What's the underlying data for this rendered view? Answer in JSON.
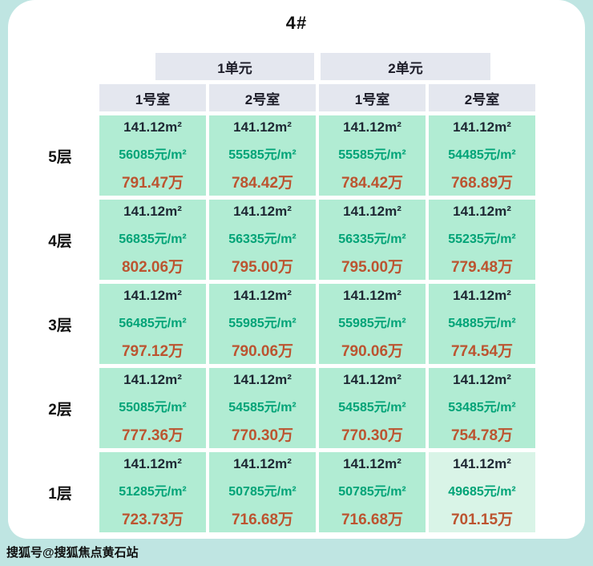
{
  "page": {
    "title": "4#",
    "watermark": "搜狐号@搜狐焦点黄石站"
  },
  "colors": {
    "page_background": "#bfe5e2",
    "card_background": "#ffffff",
    "header_background": "#e4e7ef",
    "cell_background": "#b1ecd3",
    "cell_background_highlight": "#d9f4e7",
    "area_text": "#1e2733",
    "unit_price_text": "#00a377",
    "total_price_text": "#bc5430"
  },
  "table": {
    "unit_headers": [
      "1单元",
      "2单元"
    ],
    "room_headers": [
      "1号室",
      "2号室",
      "1号室",
      "2号室"
    ],
    "rows": [
      {
        "floor": "5层",
        "cells": [
          {
            "area": "141.12m²",
            "unit_price": "56085元/m²",
            "total": "791.47万"
          },
          {
            "area": "141.12m²",
            "unit_price": "55585元/m²",
            "total": "784.42万"
          },
          {
            "area": "141.12m²",
            "unit_price": "55585元/m²",
            "total": "784.42万"
          },
          {
            "area": "141.12m²",
            "unit_price": "54485元/m²",
            "total": "768.89万"
          }
        ]
      },
      {
        "floor": "4层",
        "cells": [
          {
            "area": "141.12m²",
            "unit_price": "56835元/m²",
            "total": "802.06万"
          },
          {
            "area": "141.12m²",
            "unit_price": "56335元/m²",
            "total": "795.00万"
          },
          {
            "area": "141.12m²",
            "unit_price": "56335元/m²",
            "total": "795.00万"
          },
          {
            "area": "141.12m²",
            "unit_price": "55235元/m²",
            "total": "779.48万"
          }
        ]
      },
      {
        "floor": "3层",
        "cells": [
          {
            "area": "141.12m²",
            "unit_price": "56485元/m²",
            "total": "797.12万"
          },
          {
            "area": "141.12m²",
            "unit_price": "55985元/m²",
            "total": "790.06万"
          },
          {
            "area": "141.12m²",
            "unit_price": "55985元/m²",
            "total": "790.06万"
          },
          {
            "area": "141.12m²",
            "unit_price": "54885元/m²",
            "total": "774.54万"
          }
        ]
      },
      {
        "floor": "2层",
        "cells": [
          {
            "area": "141.12m²",
            "unit_price": "55085元/m²",
            "total": "777.36万"
          },
          {
            "area": "141.12m²",
            "unit_price": "54585元/m²",
            "total": "770.30万"
          },
          {
            "area": "141.12m²",
            "unit_price": "54585元/m²",
            "total": "770.30万"
          },
          {
            "area": "141.12m²",
            "unit_price": "53485元/m²",
            "total": "754.78万"
          }
        ]
      },
      {
        "floor": "1层",
        "cells": [
          {
            "area": "141.12m²",
            "unit_price": "51285元/m²",
            "total": "723.73万"
          },
          {
            "area": "141.12m²",
            "unit_price": "50785元/m²",
            "total": "716.68万"
          },
          {
            "area": "141.12m²",
            "unit_price": "50785元/m²",
            "total": "716.68万"
          },
          {
            "area": "141.12m²",
            "unit_price": "49685元/m²",
            "total": "701.15万"
          }
        ]
      }
    ]
  },
  "chart_data": {
    "type": "table",
    "title": "4#",
    "column_groups": [
      "1单元",
      "2单元"
    ],
    "columns": [
      "1号室",
      "2号室",
      "1号室",
      "2号室"
    ],
    "row_labels": [
      "5层",
      "4层",
      "3层",
      "2层",
      "1层"
    ],
    "area_m2": 141.12,
    "unit_prices_yuan_per_m2": [
      [
        56085,
        55585,
        55585,
        54485
      ],
      [
        56835,
        56335,
        56335,
        55235
      ],
      [
        56485,
        55985,
        55985,
        54885
      ],
      [
        55085,
        54585,
        54585,
        53485
      ],
      [
        51285,
        50785,
        50785,
        49685
      ]
    ],
    "total_prices_wan": [
      [
        791.47,
        784.42,
        784.42,
        768.89
      ],
      [
        802.06,
        795.0,
        795.0,
        779.48
      ],
      [
        797.12,
        790.06,
        790.06,
        774.54
      ],
      [
        777.36,
        770.3,
        770.3,
        754.78
      ],
      [
        723.73,
        716.68,
        716.68,
        701.15
      ]
    ]
  }
}
